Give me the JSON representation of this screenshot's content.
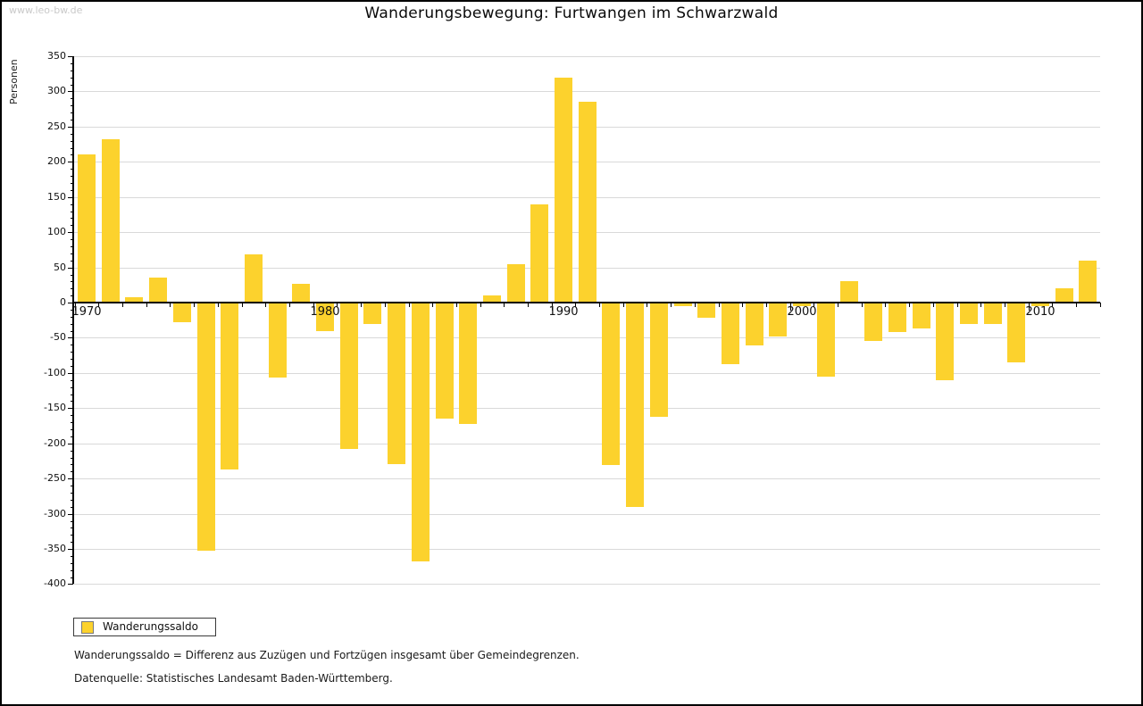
{
  "watermark": "www.leo-bw.de",
  "title": "Wanderungsbewegung: Furtwangen im Schwarzwald",
  "y_axis_label": "Personen",
  "legend": {
    "label": "Wanderungssaldo"
  },
  "notes": {
    "definition": "Wanderungssaldo = Differenz aus Zuzügen und Fortzügen insgesamt über Gemeindegrenzen.",
    "source": "Datenquelle: Statistisches Landesamt Baden-Württemberg."
  },
  "colors": {
    "bar": "#fcd22d",
    "grid": "#d9d9d9",
    "axis": "#000000",
    "watermark": "#c9c9c9"
  },
  "chart_data": {
    "type": "bar",
    "title": "Wanderungsbewegung: Furtwangen im Schwarzwald",
    "ylabel": "Personen",
    "series_name": "Wanderungssaldo",
    "x": [
      1970,
      1971,
      1972,
      1973,
      1974,
      1975,
      1976,
      1977,
      1978,
      1979,
      1980,
      1981,
      1982,
      1983,
      1984,
      1985,
      1986,
      1987,
      1988,
      1989,
      1990,
      1991,
      1992,
      1993,
      1994,
      1995,
      1996,
      1997,
      1998,
      1999,
      2000,
      2001,
      2002,
      2003,
      2004,
      2005,
      2006,
      2007,
      2008,
      2009,
      2010,
      2011,
      2012
    ],
    "values": [
      210,
      232,
      8,
      35,
      -28,
      -352,
      -237,
      68,
      -107,
      27,
      -40,
      -208,
      -31,
      -229,
      -368,
      -165,
      -173,
      10,
      54,
      140,
      320,
      285,
      -231,
      -290,
      -162,
      -5,
      -22,
      -88,
      -61,
      -48,
      -5,
      -105,
      30,
      -55,
      -42,
      -37,
      -110,
      -30,
      -30,
      -85,
      -5,
      20,
      60
    ],
    "ylim": [
      -400,
      350
    ],
    "ytick_step": 50,
    "ytick_minor_step": 10,
    "ytick_labels": [
      350,
      300,
      250,
      200,
      150,
      100,
      50,
      0,
      -50,
      -100,
      -150,
      -200,
      -250,
      -300,
      -350,
      -400
    ],
    "xtick_labels": [
      1970,
      1980,
      1990,
      2000,
      2010
    ],
    "grid": "horizontal",
    "legend_position": "bottom-left"
  }
}
